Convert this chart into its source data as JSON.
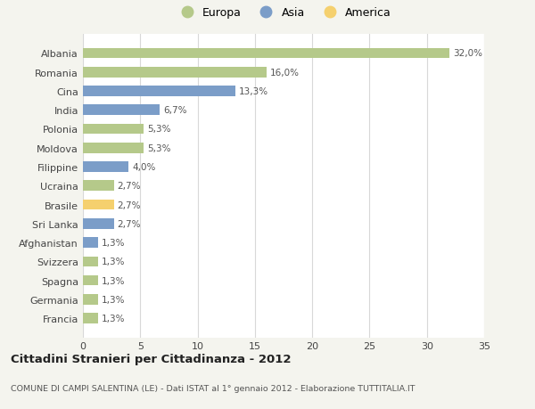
{
  "categories": [
    "Albania",
    "Romania",
    "Cina",
    "India",
    "Polonia",
    "Moldova",
    "Filippine",
    "Ucraina",
    "Brasile",
    "Sri Lanka",
    "Afghanistan",
    "Svizzera",
    "Spagna",
    "Germania",
    "Francia"
  ],
  "values": [
    32.0,
    16.0,
    13.3,
    6.7,
    5.3,
    5.3,
    4.0,
    2.7,
    2.7,
    2.7,
    1.3,
    1.3,
    1.3,
    1.3,
    1.3
  ],
  "labels": [
    "32,0%",
    "16,0%",
    "13,3%",
    "6,7%",
    "5,3%",
    "5,3%",
    "4,0%",
    "2,7%",
    "2,7%",
    "2,7%",
    "1,3%",
    "1,3%",
    "1,3%",
    "1,3%",
    "1,3%"
  ],
  "continent": [
    "Europa",
    "Europa",
    "Asia",
    "Asia",
    "Europa",
    "Europa",
    "Asia",
    "Europa",
    "America",
    "Asia",
    "Asia",
    "Europa",
    "Europa",
    "Europa",
    "Europa"
  ],
  "colors": {
    "Europa": "#b5c98a",
    "Asia": "#7b9dc8",
    "America": "#f5d06e"
  },
  "title": "Cittadini Stranieri per Cittadinanza - 2012",
  "subtitle": "COMUNE DI CAMPI SALENTINA (LE) - Dati ISTAT al 1° gennaio 2012 - Elaborazione TUTTITALIA.IT",
  "xlim": [
    0,
    35
  ],
  "xticks": [
    0,
    5,
    10,
    15,
    20,
    25,
    30,
    35
  ],
  "background_color": "#f4f4ee",
  "plot_background": "#ffffff",
  "grid_color": "#d8d8d8",
  "legend_labels": [
    "Europa",
    "Asia",
    "America"
  ]
}
